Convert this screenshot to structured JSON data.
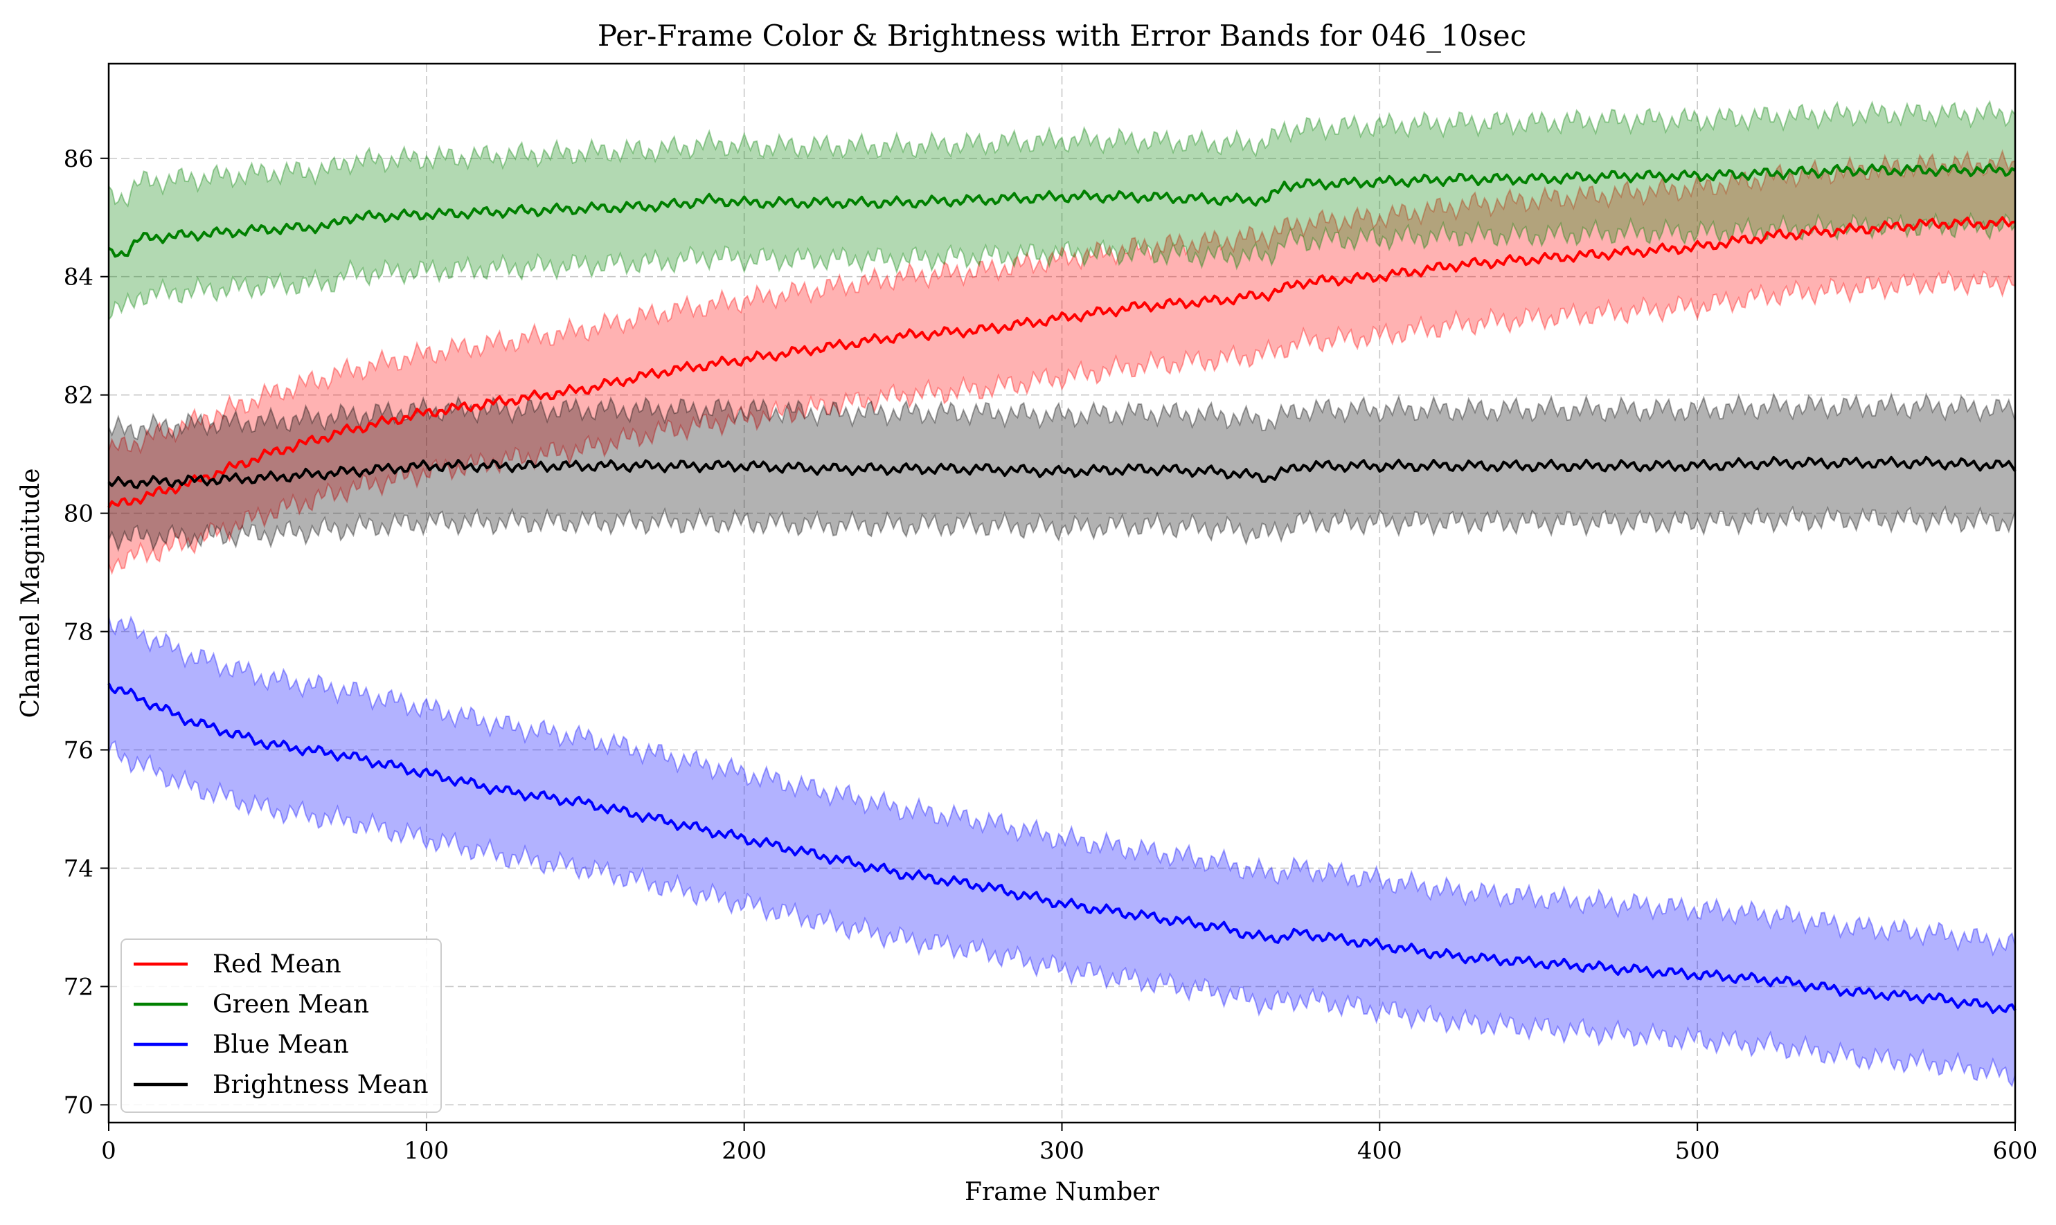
{
  "chart_data": {
    "type": "line",
    "title": "Per-Frame Color & Brightness with Error Bands for 046_10sec",
    "xlabel": "Frame Number",
    "ylabel": "Channel Magnitude",
    "xlim": [
      0,
      600
    ],
    "ylim": [
      69.7,
      87.6
    ],
    "xticks": [
      0,
      100,
      200,
      300,
      400,
      500,
      600
    ],
    "yticks": [
      70,
      72,
      74,
      76,
      78,
      80,
      82,
      84,
      86
    ],
    "grid": true,
    "grid_style": "dashed",
    "legend_position": "lower-left",
    "band": "mean ± one standard deviation (shaded)",
    "series": [
      {
        "name": "Red Mean",
        "color": "#ff0000",
        "band_alpha": 0.3,
        "x": [
          0,
          25,
          50,
          75,
          100,
          125,
          150,
          175,
          200,
          225,
          250,
          275,
          300,
          325,
          350,
          365,
          375,
          400,
          425,
          450,
          475,
          500,
          525,
          550,
          575,
          600
        ],
        "mean": [
          80.1,
          80.5,
          81.0,
          81.4,
          81.7,
          81.9,
          82.1,
          82.4,
          82.6,
          82.8,
          83.0,
          83.1,
          83.3,
          83.5,
          83.6,
          83.7,
          83.9,
          84.0,
          84.2,
          84.3,
          84.4,
          84.5,
          84.7,
          84.8,
          84.9,
          84.9
        ],
        "std": [
          0.95,
          1.0,
          1.0,
          1.0,
          1.0,
          1.0,
          1.0,
          1.0,
          1.0,
          1.0,
          1.0,
          1.0,
          1.0,
          1.0,
          1.0,
          1.0,
          1.0,
          1.0,
          1.0,
          1.0,
          1.0,
          1.0,
          1.0,
          1.0,
          1.0,
          1.0
        ]
      },
      {
        "name": "Green Mean",
        "color": "#008000",
        "band_alpha": 0.3,
        "x": [
          0,
          5,
          10,
          25,
          50,
          70,
          75,
          100,
          125,
          150,
          175,
          190,
          200,
          225,
          250,
          275,
          300,
          325,
          350,
          365,
          370,
          400,
          425,
          450,
          475,
          500,
          525,
          550,
          575,
          600
        ],
        "mean": [
          84.4,
          84.4,
          84.65,
          84.7,
          84.8,
          84.85,
          85.0,
          85.05,
          85.1,
          85.15,
          85.2,
          85.3,
          85.25,
          85.25,
          85.25,
          85.3,
          85.35,
          85.35,
          85.3,
          85.3,
          85.55,
          85.6,
          85.65,
          85.65,
          85.7,
          85.7,
          85.75,
          85.8,
          85.8,
          85.8
        ],
        "std": [
          0.95,
          0.95,
          0.95,
          0.95,
          0.95,
          0.95,
          0.95,
          0.95,
          0.95,
          0.95,
          0.95,
          0.95,
          0.95,
          0.95,
          0.95,
          0.95,
          0.95,
          0.95,
          0.95,
          0.95,
          0.95,
          0.95,
          0.95,
          0.95,
          0.95,
          0.95,
          0.95,
          0.95,
          0.95,
          0.95
        ]
      },
      {
        "name": "Blue Mean",
        "color": "#0000ff",
        "band_alpha": 0.3,
        "x": [
          0,
          25,
          50,
          75,
          100,
          125,
          150,
          175,
          200,
          225,
          250,
          275,
          300,
          325,
          350,
          365,
          375,
          400,
          425,
          450,
          475,
          500,
          525,
          550,
          575,
          600
        ],
        "mean": [
          77.1,
          76.5,
          76.1,
          75.9,
          75.6,
          75.3,
          75.1,
          74.8,
          74.5,
          74.2,
          73.9,
          73.7,
          73.4,
          73.2,
          73.0,
          72.8,
          72.9,
          72.7,
          72.5,
          72.4,
          72.3,
          72.2,
          72.1,
          71.9,
          71.8,
          71.6
        ],
        "std": [
          1.1,
          1.1,
          1.1,
          1.1,
          1.1,
          1.1,
          1.1,
          1.1,
          1.1,
          1.1,
          1.1,
          1.1,
          1.1,
          1.1,
          1.1,
          1.1,
          1.1,
          1.1,
          1.1,
          1.1,
          1.1,
          1.1,
          1.1,
          1.1,
          1.1,
          1.1
        ]
      },
      {
        "name": "Brightness Mean",
        "color": "#000000",
        "band_alpha": 0.3,
        "x": [
          0,
          25,
          50,
          75,
          100,
          125,
          150,
          175,
          200,
          225,
          250,
          275,
          300,
          325,
          350,
          365,
          375,
          400,
          425,
          450,
          475,
          500,
          525,
          550,
          575,
          600
        ],
        "mean": [
          80.5,
          80.55,
          80.6,
          80.7,
          80.8,
          80.8,
          80.8,
          80.8,
          80.8,
          80.75,
          80.75,
          80.75,
          80.7,
          80.75,
          80.7,
          80.6,
          80.8,
          80.8,
          80.8,
          80.8,
          80.8,
          80.8,
          80.85,
          80.85,
          80.85,
          80.8
        ],
        "std": [
          0.9,
          0.95,
          0.95,
          0.95,
          0.95,
          0.95,
          0.95,
          0.95,
          0.95,
          0.95,
          0.95,
          0.95,
          0.95,
          0.95,
          0.95,
          0.95,
          0.95,
          0.95,
          0.95,
          0.95,
          0.95,
          0.95,
          0.95,
          0.95,
          0.95,
          0.95
        ]
      }
    ]
  }
}
